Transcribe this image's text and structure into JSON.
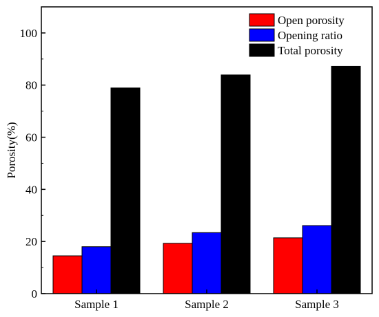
{
  "chart_data": {
    "type": "bar",
    "categories": [
      "Sample 1",
      "Sample 2",
      "Sample 3"
    ],
    "series": [
      {
        "name": "Open porosity",
        "color": "#ff0000",
        "values": [
          14.5,
          19.3,
          21.4
        ]
      },
      {
        "name": "Opening ratio",
        "color": "#0000ff",
        "values": [
          18.0,
          23.4,
          26.1
        ]
      },
      {
        "name": "Total porosity",
        "color": "#000000",
        "values": [
          78.9,
          83.9,
          87.2
        ]
      }
    ],
    "title": "",
    "xlabel": "",
    "ylabel": "Porosity(%)",
    "ylim": [
      0,
      110
    ],
    "yticks": [
      0,
      20,
      40,
      60,
      80,
      100
    ],
    "legend_position": "top-right",
    "grid": false
  }
}
